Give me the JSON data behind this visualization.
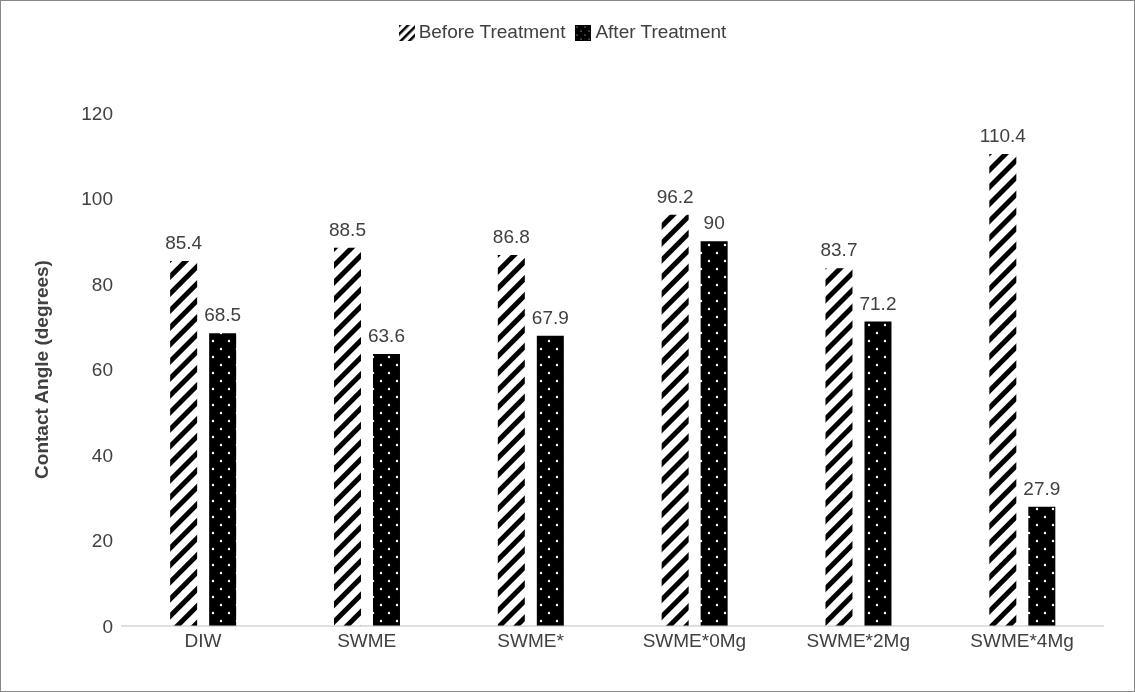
{
  "chart_data": {
    "type": "bar",
    "ylabel": "Contact Angle (degrees)",
    "categories": [
      "DIW",
      "SWME",
      "SWME*",
      "SWME*0Mg",
      "SWME*2Mg",
      "SWME*4Mg"
    ],
    "series": [
      {
        "name": "Before Treatment",
        "color": "#000000",
        "values": [
          85.4,
          88.5,
          86.8,
          96.2,
          83.7,
          110.4
        ]
      },
      {
        "name": "After Treatment",
        "color": "#000000",
        "values": [
          68.5,
          63.6,
          67.9,
          90,
          71.2,
          27.9
        ]
      }
    ],
    "ylim": [
      0,
      120
    ],
    "yticks": [
      0,
      20,
      40,
      60,
      80,
      100,
      120
    ],
    "grid": false,
    "legend": "top",
    "data_labels": true
  }
}
